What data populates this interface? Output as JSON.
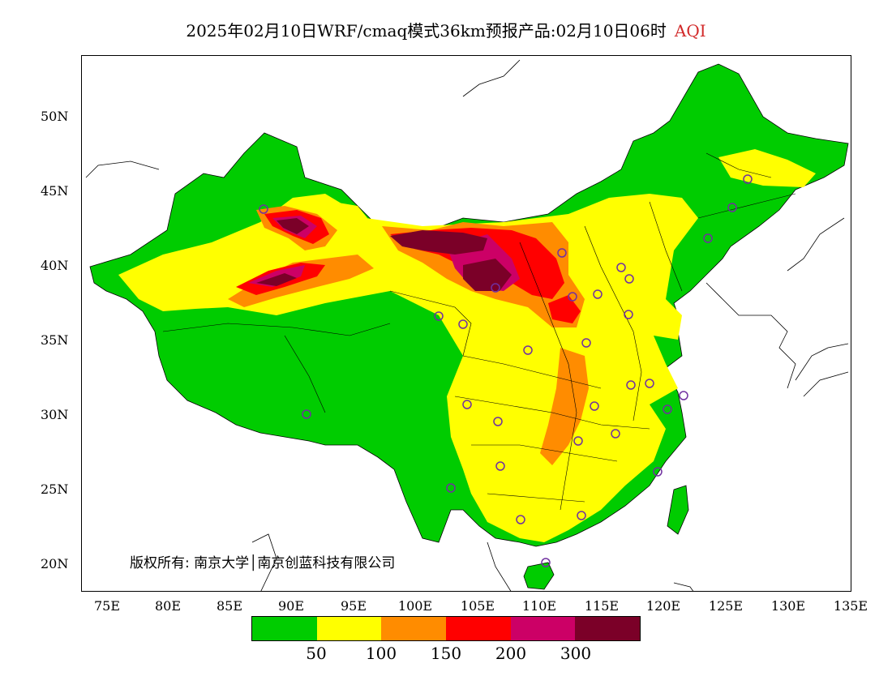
{
  "title": {
    "main": "2025年02月10日WRF/cmaq模式36km预报产品:02月10日06时",
    "pollutant": "AQI"
  },
  "axes": {
    "y_ticks": [
      "50N",
      "45N",
      "40N",
      "35N",
      "30N",
      "25N",
      "20N"
    ],
    "x_ticks": [
      "75E",
      "80E",
      "85E",
      "90E",
      "95E",
      "100E",
      "105E",
      "110E",
      "115E",
      "120E",
      "125E",
      "130E",
      "135E"
    ]
  },
  "copyright": "版权所有: 南京大学│南京创蓝科技有限公司",
  "legend": {
    "colors": [
      "#00cc00",
      "#ffff00",
      "#ff8c00",
      "#ff0000",
      "#cc0066",
      "#7b0028"
    ],
    "tick_labels": [
      "50",
      "100",
      "150",
      "200",
      "300"
    ]
  }
}
